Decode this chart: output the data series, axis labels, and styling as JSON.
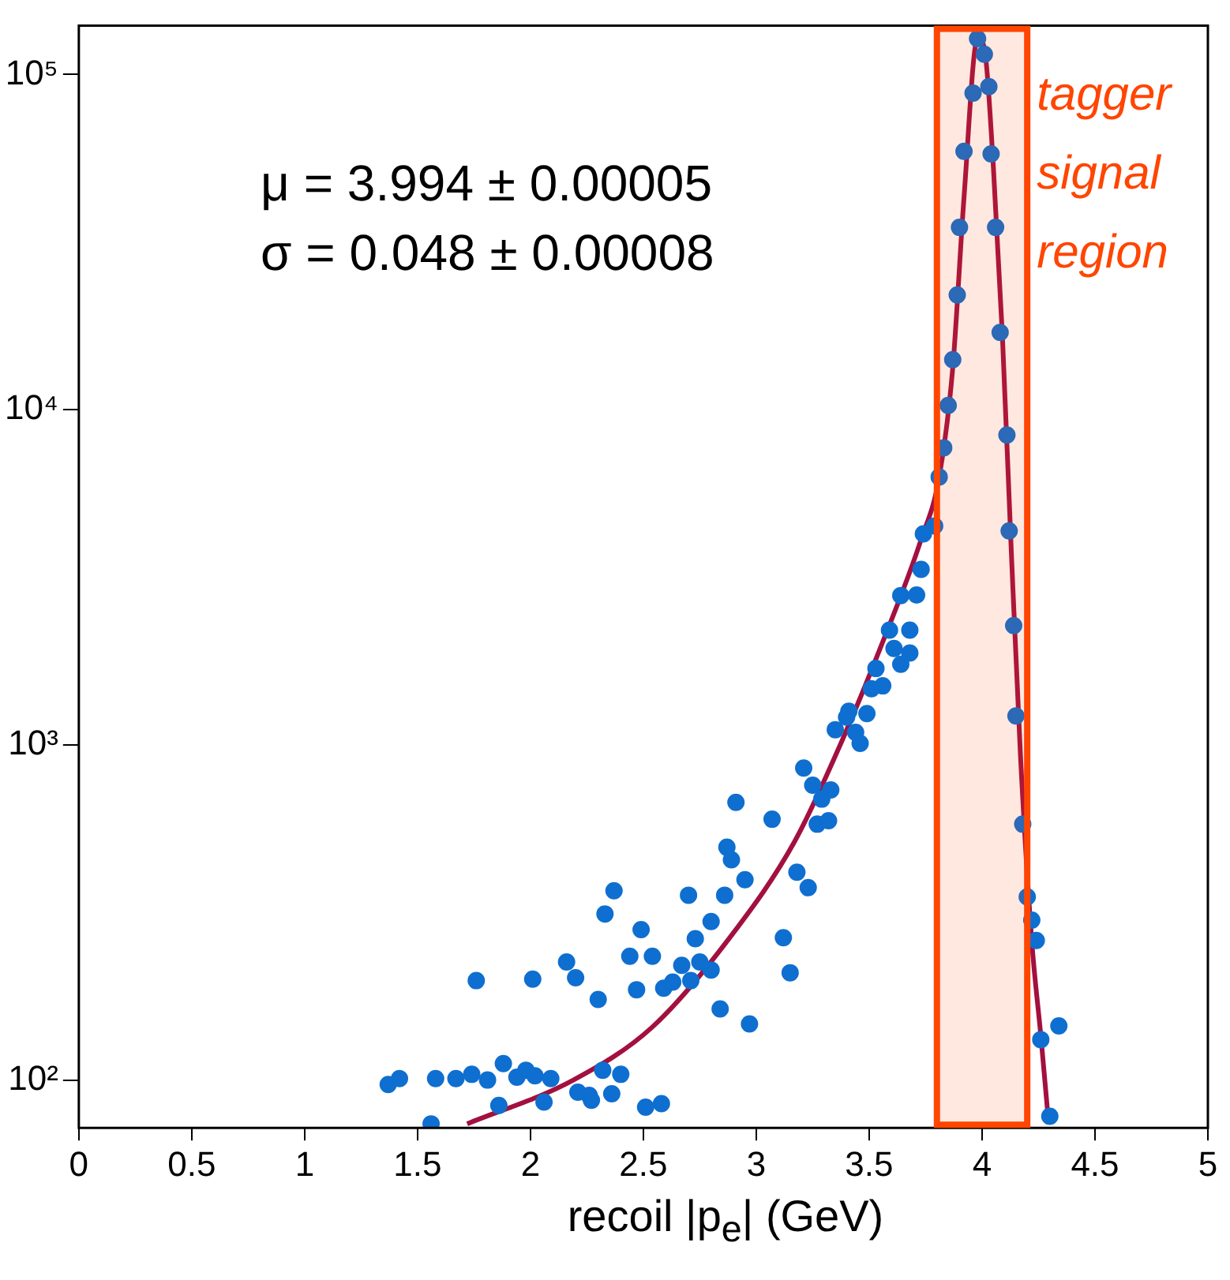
{
  "chart_data": {
    "type": "scatter",
    "xlabel": "recoil |p$_{e}$| (GeV)",
    "annotations": [
      "μ = 3.994 ± 0.00005",
      "σ = 0.048 ± 0.00008"
    ],
    "xlim": [
      0,
      5
    ],
    "xticks": [
      0,
      0.5,
      1,
      1.5,
      2,
      2.5,
      3,
      3.5,
      4,
      4.5,
      5
    ],
    "log": "y",
    "ylim": [
      72,
      140000
    ],
    "yticks": [
      {
        "value": 100,
        "label": "10²"
      },
      {
        "value": 1000,
        "label": "10³"
      },
      {
        "value": 10000,
        "label": "10⁴"
      },
      {
        "value": 100000,
        "label": "10⁵"
      }
    ],
    "grid": false,
    "legend": false,
    "bands": [
      {
        "axis": "x",
        "from": 3.8,
        "to": 4.2,
        "label": "tagger signal region",
        "color": "#ff4500"
      }
    ],
    "series": [
      {
        "color": "#0f6fd0",
        "marker": "circle",
        "x": [
          3.98,
          4.01,
          3.96,
          4.03,
          3.92,
          4.04,
          3.9,
          4.06,
          3.89,
          4.08,
          3.87,
          3.85,
          3.83,
          3.81,
          4.11,
          4.12,
          4.14,
          4.15,
          4.18,
          4.2,
          4.22,
          4.24,
          4.26,
          4.34,
          4.3,
          3.79,
          3.74,
          3.73,
          3.71,
          3.64,
          3.68,
          3.68,
          3.59,
          3.61,
          3.64,
          3.56,
          3.53,
          3.51,
          3.46,
          3.49,
          3.44,
          3.41,
          3.4,
          3.35,
          3.33,
          3.29,
          3.25,
          3.21,
          3.27,
          3.32,
          3.18,
          3.23,
          3.07,
          2.95,
          2.91,
          2.87,
          2.89,
          2.86,
          2.7,
          2.37,
          2.33,
          2.44,
          2.49,
          2.54,
          2.47,
          2.59,
          2.63,
          2.67,
          2.73,
          2.8,
          2.75,
          2.8,
          2.84,
          2.71,
          2.3,
          2.2,
          2.16,
          2.01,
          1.76,
          2.97,
          3.15,
          3.12,
          1.37,
          1.42,
          1.56,
          1.58,
          1.67,
          1.74,
          1.81,
          1.86,
          1.88,
          1.94,
          1.98,
          2.02,
          2.06,
          2.09,
          2.21,
          2.26,
          2.27,
          2.32,
          2.36,
          2.4,
          2.51,
          2.58
        ],
        "values": [
          128000,
          115000,
          88000,
          92000,
          59000,
          58000,
          35000,
          35000,
          22000,
          17000,
          14100,
          10300,
          7700,
          6300,
          8400,
          4350,
          2270,
          1220,
          580,
          352,
          300,
          261,
          132,
          145,
          78,
          4500,
          4260,
          3340,
          2800,
          2790,
          2200,
          1880,
          2200,
          1940,
          1740,
          1500,
          1690,
          1470,
          1010,
          1240,
          1090,
          1260,
          1210,
          1110,
          734,
          689,
          758,
          853,
          580,
          594,
          417,
          375,
          600,
          396,
          674,
          495,
          454,
          356,
          356,
          367,
          313,
          234,
          281,
          234,
          186,
          188,
          196,
          220,
          264,
          297,
          225,
          213,
          163,
          198,
          174,
          202,
          225,
          200,
          198,
          147,
          209,
          266,
          97,
          101,
          74,
          101,
          101,
          104,
          100,
          84,
          112,
          102,
          107,
          103,
          86,
          101,
          92,
          90,
          87,
          107,
          91,
          104,
          83,
          85
        ]
      },
      {
        "type": "line",
        "color": "#a3103f",
        "x": [
          1.72,
          2.19,
          2.54,
          2.89,
          3.17,
          3.38,
          3.55,
          3.73,
          3.81,
          3.87,
          3.92,
          3.98,
          4.01,
          4.05,
          4.09,
          4.13,
          4.17,
          4.22,
          4.26,
          4.295
        ],
        "values": [
          74,
          100,
          144,
          270,
          515,
          1030,
          1950,
          4100,
          6300,
          13300,
          43000,
          128000,
          120000,
          53000,
          16600,
          3700,
          930,
          260,
          136,
          74
        ]
      }
    ]
  }
}
